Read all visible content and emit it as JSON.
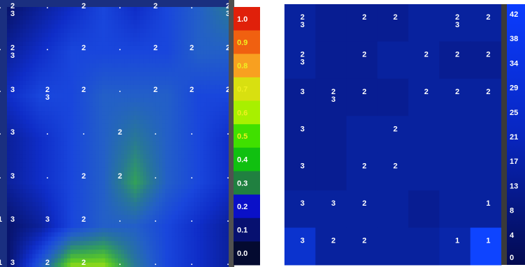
{
  "chart_data": [
    {
      "type": "heatmap",
      "name": "interpolated-density-map",
      "colorbar": {
        "ticks": [
          "1.0",
          "0.9",
          "0.8",
          "0.7",
          "0.6",
          "0.5",
          "0.4",
          "0.3",
          "0.2",
          "0.1",
          "0.0"
        ],
        "colors": [
          "#e0200a",
          "#f06010",
          "#f8a020",
          "#d8e010",
          "#a8f000",
          "#40e000",
          "#10c010",
          "#208040",
          "#0a10c8",
          "#071070",
          "#040a30"
        ]
      },
      "rows": [
        {
          "y": 0,
          "left": "2\n3",
          "cells": [
            "",
            "2",
            "",
            "2",
            "",
            "2\n3",
            ""
          ]
        },
        {
          "y": 1,
          "left": "2\n3",
          "cells": [
            "",
            "2",
            "",
            "2",
            "2",
            "2",
            ""
          ]
        },
        {
          "y": 2,
          "left": "3",
          "cells": [
            "2\n3",
            "2",
            "",
            "2",
            "2",
            "2",
            ""
          ]
        },
        {
          "y": 3,
          "left": "3",
          "cells": [
            "",
            "",
            "2",
            "",
            "",
            "",
            ""
          ]
        },
        {
          "y": 4,
          "left": "3",
          "cells": [
            "",
            "2",
            "2",
            "",
            "",
            "",
            ""
          ]
        },
        {
          "y": 5,
          "left": "3",
          "cells": [
            "3",
            "2",
            "",
            "",
            "",
            "",
            "1"
          ]
        },
        {
          "y": 6,
          "left": "3",
          "cells": [
            "2",
            "2",
            "",
            "",
            "",
            "",
            "1"
          ]
        }
      ],
      "top_labels": [
        "2\n3",
        "",
        "2",
        "",
        "2",
        "",
        "2\n3",
        "2"
      ],
      "dots": ".",
      "grid_values": [
        [
          0.15,
          0.2,
          0.25,
          0.3,
          0.25,
          0.3,
          0.35,
          0.4
        ],
        [
          0.2,
          0.25,
          0.3,
          0.3,
          0.3,
          0.3,
          0.35,
          0.35
        ],
        [
          0.25,
          0.3,
          0.3,
          0.35,
          0.35,
          0.35,
          0.3,
          0.3
        ],
        [
          0.2,
          0.25,
          0.3,
          0.35,
          0.4,
          0.35,
          0.3,
          0.25
        ],
        [
          0.2,
          0.25,
          0.3,
          0.35,
          0.45,
          0.35,
          0.3,
          0.25
        ],
        [
          0.15,
          0.2,
          0.3,
          0.35,
          0.35,
          0.3,
          0.25,
          0.2
        ],
        [
          0.15,
          0.35,
          0.55,
          0.55,
          0.4,
          0.3,
          0.25,
          0.2
        ]
      ]
    },
    {
      "type": "heatmap",
      "name": "count-grid",
      "colorbar": {
        "ticks": [
          "42",
          "38",
          "34",
          "29",
          "25",
          "21",
          "17",
          "13",
          "8",
          "4",
          "0"
        ]
      },
      "cells": [
        [
          "2\n3",
          "",
          "2",
          "2",
          "",
          "2\n3",
          "2"
        ],
        [
          "2\n3",
          "",
          "2",
          "",
          "2",
          "2",
          "2"
        ],
        [
          "3",
          "2\n3",
          "2",
          "",
          "2",
          "2",
          "2"
        ],
        [
          "3",
          "",
          "",
          "2",
          "",
          "",
          ""
        ],
        [
          "3",
          "",
          "2",
          "2",
          "",
          "",
          ""
        ],
        [
          "3",
          "3",
          "2",
          "",
          "",
          "",
          "1"
        ],
        [
          "3",
          "2",
          "2",
          "",
          "",
          "1",
          "1"
        ]
      ],
      "values": [
        [
          6,
          5,
          5,
          5,
          6,
          6,
          6
        ],
        [
          6,
          5,
          5,
          6,
          6,
          5,
          5
        ],
        [
          5,
          5,
          5,
          5,
          6,
          6,
          6
        ],
        [
          5,
          5,
          6,
          6,
          6,
          6,
          6
        ],
        [
          5,
          5,
          6,
          6,
          6,
          6,
          6
        ],
        [
          6,
          6,
          6,
          6,
          5,
          6,
          6
        ],
        [
          10,
          6,
          6,
          6,
          6,
          7,
          14
        ]
      ]
    }
  ]
}
